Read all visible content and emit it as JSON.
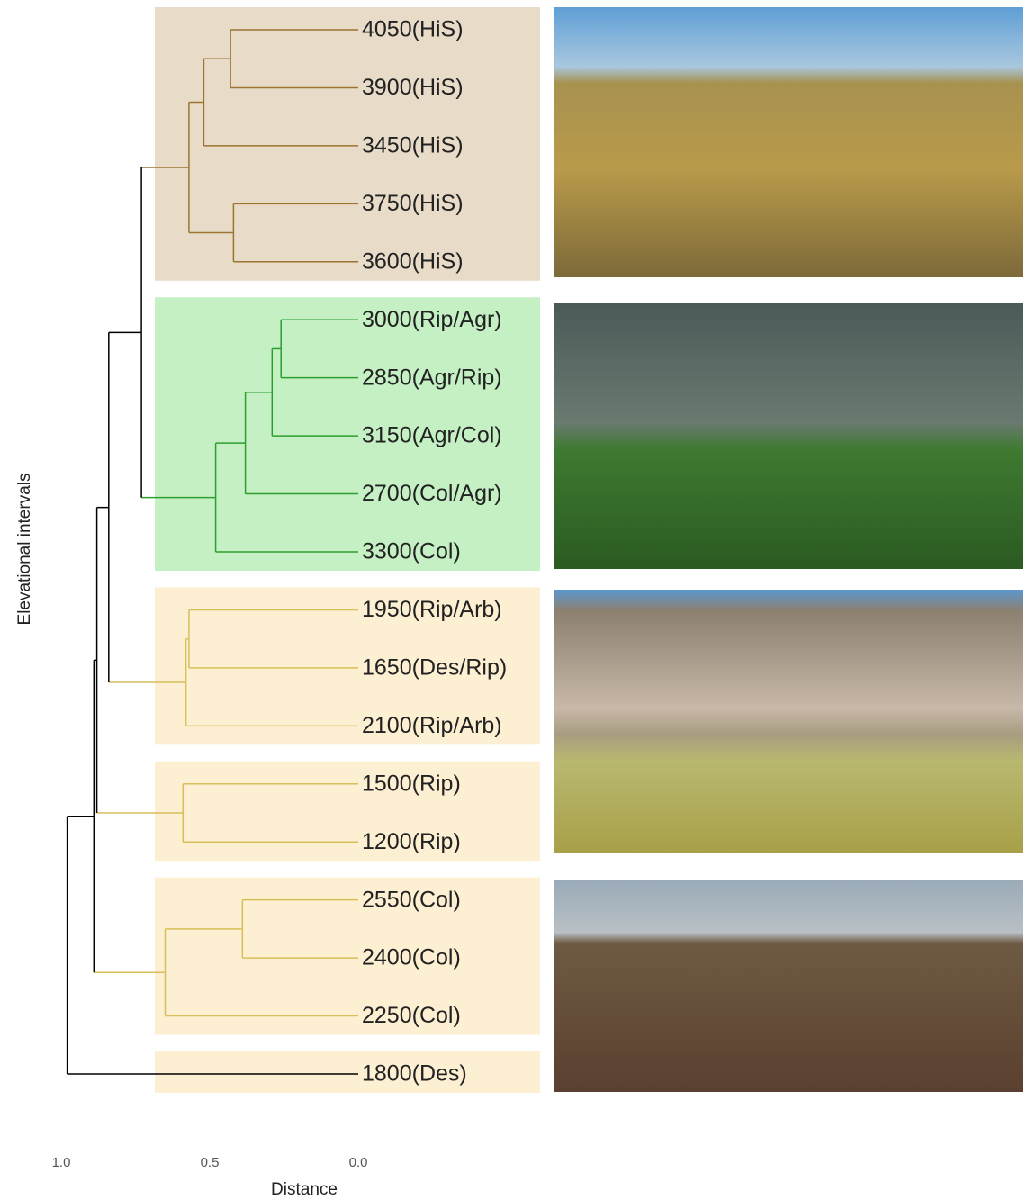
{
  "chart_data": {
    "type": "dendrogram",
    "xlabel": "Distance",
    "ylabel": "Elevational intervals",
    "xlim": [
      1.0,
      0.0
    ],
    "xticks": [
      {
        "value": 1.0,
        "label": "1.0"
      },
      0.5,
      {
        "value": 0.0,
        "label": "0.0"
      }
    ],
    "leaves": [
      "4050(HiS)",
      "3900(HiS)",
      "3450(HiS)",
      "3750(HiS)",
      "3600(HiS)",
      "3000(Rip/Agr)",
      "2850(Agr/Rip)",
      "3150(Agr/Col)",
      "2700(Col/Agr)",
      "3300(Col)",
      "1950(Rip/Arb)",
      "1650(Des/Rip)",
      "2100(Rip/Arb)",
      "1500(Rip)",
      "1200(Rip)",
      "2550(Col)",
      "2400(Col)",
      "2250(Col)",
      "1800(Des)"
    ],
    "merges": [
      {
        "left": 0,
        "right": 1,
        "height": 0.43,
        "color": "#9a7430"
      },
      {
        "left": 19,
        "right": 2,
        "height": 0.52,
        "color": "#9a7430"
      },
      {
        "left": 3,
        "right": 4,
        "height": 0.42,
        "color": "#9a7430"
      },
      {
        "left": 20,
        "right": 21,
        "height": 0.57,
        "color": "#9a7430"
      },
      {
        "left": 5,
        "right": 6,
        "height": 0.26,
        "color": "#2e9e2e"
      },
      {
        "left": 23,
        "right": 7,
        "height": 0.29,
        "color": "#2e9e2e"
      },
      {
        "left": 24,
        "right": 8,
        "height": 0.38,
        "color": "#2e9e2e"
      },
      {
        "left": 25,
        "right": 9,
        "height": 0.48,
        "color": "#2e9e2e"
      },
      {
        "left": 22,
        "right": 26,
        "height": 0.73,
        "color": "#000000"
      },
      {
        "left": 10,
        "right": 11,
        "height": 0.57,
        "color": "#d8bf5a"
      },
      {
        "left": 28,
        "right": 12,
        "height": 0.58,
        "color": "#d8bf5a"
      },
      {
        "left": 13,
        "right": 14,
        "height": 0.59,
        "color": "#d8bf5a"
      },
      {
        "left": 15,
        "right": 16,
        "height": 0.39,
        "color": "#d8bf5a"
      },
      {
        "left": 31,
        "right": 17,
        "height": 0.65,
        "color": "#d8bf5a"
      },
      {
        "left": 27,
        "right": 29,
        "height": 0.84,
        "color": "#000000"
      },
      {
        "left": 33,
        "right": 30,
        "height": 0.88,
        "color": "#000000"
      },
      {
        "left": 34,
        "right": 32,
        "height": 0.89,
        "color": "#000000"
      },
      {
        "left": 35,
        "right": 18,
        "height": 0.98,
        "color": "#000000"
      }
    ],
    "groups": [
      {
        "leaves": [
          0,
          4
        ],
        "color": "#e8dcc8"
      },
      {
        "leaves": [
          5,
          9
        ],
        "color": "#c4f0c4"
      },
      {
        "leaves": [
          10,
          12
        ],
        "color": "#fdefd2"
      },
      {
        "leaves": [
          13,
          14
        ],
        "color": "#fdefd2"
      },
      {
        "leaves": [
          15,
          17
        ],
        "color": "#fdefd2"
      },
      {
        "leaves": [
          18,
          18
        ],
        "color": "#fdefd2"
      }
    ]
  }
}
